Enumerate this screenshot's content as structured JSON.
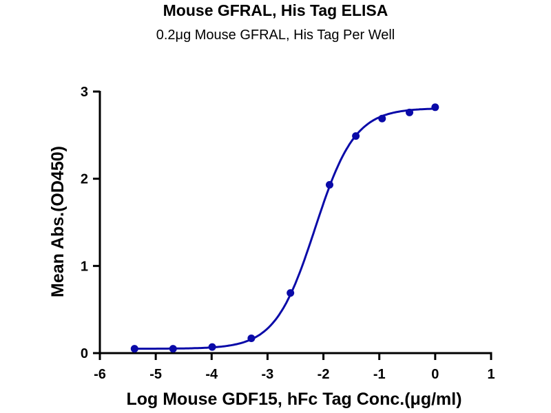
{
  "chart_data": {
    "type": "scatter",
    "title": "Mouse GFRAL, His Tag ELISA",
    "subtitle": "0.2μg Mouse GFRAL, His Tag Per Well",
    "xlabel": "Log Mouse GDF15, hFc Tag Conc.(μg/ml)",
    "ylabel": "Mean Abs.(OD450)",
    "xlim": [
      -6,
      1
    ],
    "ylim": [
      0,
      3
    ],
    "xticks": [
      "-6",
      "-5",
      "-4",
      "-3",
      "-2",
      "-1",
      "0",
      "1"
    ],
    "yticks": [
      "0",
      "1",
      "2",
      "3"
    ],
    "grid": false,
    "series": [
      {
        "name": "Mouse GDF15, hFc Tag",
        "color": "#0a0aa8",
        "x": [
          -5.38,
          -4.69,
          -3.99,
          -3.29,
          -2.59,
          -1.89,
          -1.42,
          -0.95,
          -0.46,
          0.0
        ],
        "y": [
          0.05,
          0.05,
          0.07,
          0.17,
          0.69,
          1.93,
          2.49,
          2.69,
          2.76,
          2.82
        ],
        "fit": {
          "model": "4PL",
          "bottom": 0.05,
          "top": 2.81,
          "logEC50": -2.15,
          "hill": 1.22
        }
      }
    ]
  }
}
